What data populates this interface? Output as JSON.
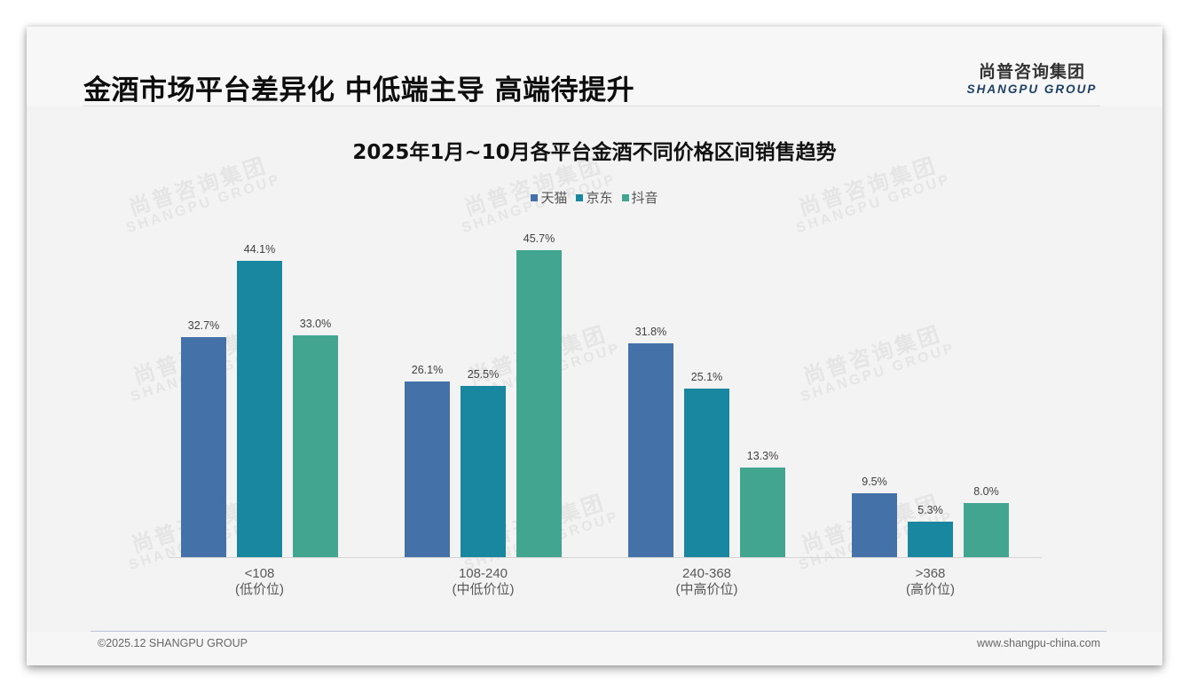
{
  "header": {
    "title": "金酒市场平台差异化 中低端主导 高端待提升",
    "logo_cn": "尚普咨询集团",
    "logo_en": "SHANGPU GROUP"
  },
  "watermark": {
    "cn": "尚普咨询集团",
    "en": "SHANGPU GROUP"
  },
  "colors": {
    "tmall": "#4472A8",
    "jd": "#1A87A0",
    "douyin": "#41A590"
  },
  "chart_data": {
    "type": "bar",
    "title": "2025年1月~10月各平台金酒不同价格区间销售趋势",
    "categories": [
      "<108",
      "108-240",
      "240-368",
      ">368"
    ],
    "category_sublabels": [
      "(低价位)",
      "(中低价位)",
      "(中高价位)",
      "(高价位)"
    ],
    "series": [
      {
        "name": "天猫",
        "values": [
          32.7,
          26.1,
          31.8,
          9.5
        ],
        "labels": [
          "32.7%",
          "26.1%",
          "31.8%",
          "9.5%"
        ]
      },
      {
        "name": "京东",
        "values": [
          44.1,
          25.5,
          25.1,
          5.3
        ],
        "labels": [
          "44.1%",
          "25.5%",
          "25.1%",
          "5.3%"
        ]
      },
      {
        "name": "抖音",
        "values": [
          33.0,
          45.7,
          13.3,
          8.0
        ],
        "labels": [
          "33.0%",
          "45.7%",
          "13.3%",
          "8.0%"
        ]
      }
    ],
    "xlabel": "",
    "ylabel": "",
    "unit": "%",
    "legend_position": "top",
    "grid": false,
    "y_axis_visible": false
  },
  "legend": {
    "items": [
      {
        "label": "天猫"
      },
      {
        "label": "京东"
      },
      {
        "label": "抖音"
      }
    ]
  },
  "footer": {
    "copyright": "©2025.12 SHANGPU GROUP",
    "website": "www.shangpu-china.com"
  }
}
